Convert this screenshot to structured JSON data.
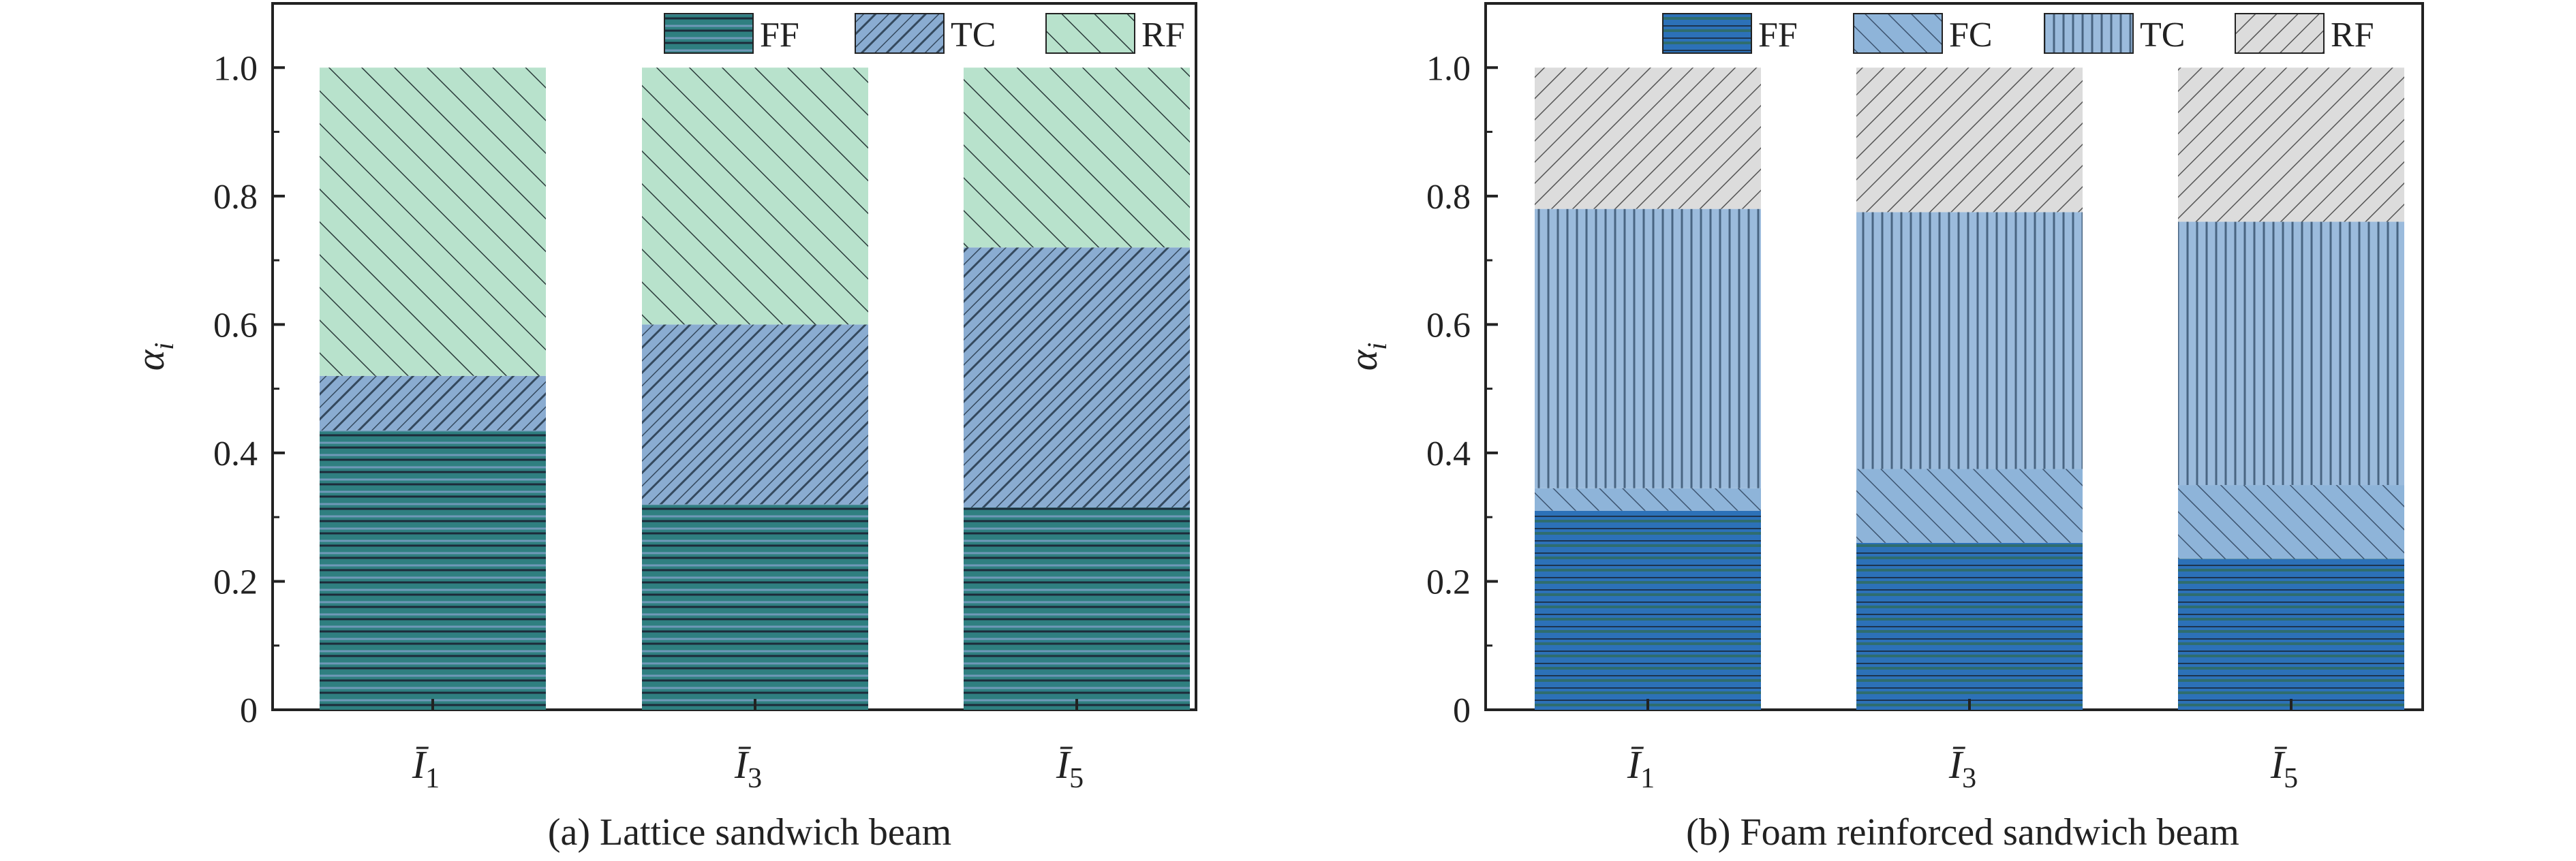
{
  "chart_data": [
    {
      "type": "bar",
      "stacked": true,
      "title": "(a) Lattice sandwich beam",
      "ylabel": "α_i",
      "categories": [
        "Ī1",
        "Ī3",
        "Ī5"
      ],
      "ylim": [
        0,
        1.1
      ],
      "yticks": [
        0,
        0.2,
        0.4,
        0.6,
        0.8,
        1.0
      ],
      "ytick_labels": [
        "0",
        "0.2",
        "0.4",
        "0.6",
        "0.8",
        "1.0"
      ],
      "legend": "top",
      "series": [
        {
          "name": "FF",
          "values": [
            0.435,
            0.32,
            0.315
          ],
          "color": "#2f7f80"
        },
        {
          "name": "TC",
          "values": [
            0.085,
            0.28,
            0.405
          ],
          "color": "#8aacd1"
        },
        {
          "name": "RF",
          "values": [
            0.48,
            0.4,
            0.28
          ],
          "color": "#b8e2cc"
        }
      ]
    },
    {
      "type": "bar",
      "stacked": true,
      "title": "(b) Foam reinforced sandwich beam",
      "ylabel": "α_i",
      "categories": [
        "Ī1",
        "Ī3",
        "Ī5"
      ],
      "ylim": [
        0,
        1.1
      ],
      "yticks": [
        0,
        0.2,
        0.4,
        0.6,
        0.8,
        1.0
      ],
      "ytick_labels": [
        "0",
        "0.2",
        "0.4",
        "0.6",
        "0.8",
        "1.0"
      ],
      "legend": "top",
      "series": [
        {
          "name": "FF",
          "values": [
            0.31,
            0.26,
            0.235
          ],
          "color": "#2c71b8"
        },
        {
          "name": "FC",
          "values": [
            0.035,
            0.115,
            0.115
          ],
          "color": "#8eb4d9"
        },
        {
          "name": "TC",
          "values": [
            0.435,
            0.4,
            0.41
          ],
          "color": "#7f9fbf"
        },
        {
          "name": "RF",
          "values": [
            0.22,
            0.225,
            0.24
          ],
          "color": "#d9d9d9"
        }
      ]
    }
  ]
}
